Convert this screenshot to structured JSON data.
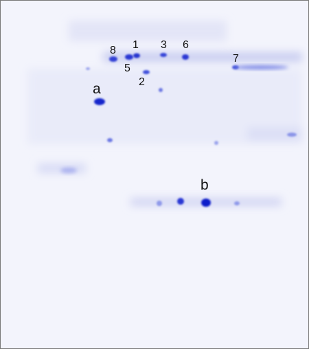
{
  "annotations": [
    "8",
    "1",
    "3",
    "6",
    "7",
    "5",
    "2",
    "a",
    "b"
  ]
}
